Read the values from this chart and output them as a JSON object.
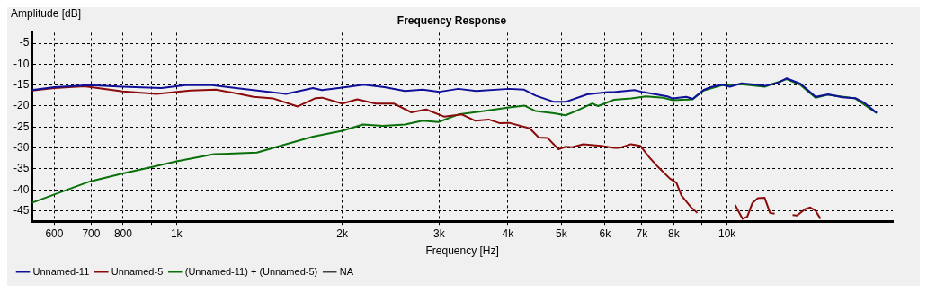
{
  "chart_data": {
    "type": "line",
    "title": "Frequency Response",
    "xlabel": "Frequency [Hz]",
    "ylabel": "Amplitude [dB]",
    "log": "x",
    "grid": true,
    "legend": "bottom left",
    "marker": "none",
    "line_style": "solid",
    "xlim": [
      546,
      20000
    ],
    "ylim": [
      -47.5,
      -2.5
    ],
    "xticks": [
      600,
      700,
      800,
      {
        "value": 900,
        "label": null
      },
      {
        "value": 1000,
        "label": "1k"
      },
      {
        "value": 2000,
        "label": "2k"
      },
      {
        "value": 3000,
        "label": "3k"
      },
      {
        "value": 4000,
        "label": "4k"
      },
      {
        "value": 5000,
        "label": "5k"
      },
      {
        "value": 6000,
        "label": "6k"
      },
      {
        "value": 7000,
        "label": "7k"
      },
      {
        "value": 8000,
        "label": "8k"
      },
      {
        "value": 9000,
        "label": null
      },
      {
        "value": 10000,
        "label": "10k"
      }
    ],
    "yticks": [
      -5,
      -10,
      -15,
      -20,
      -25,
      -30,
      -35,
      -40,
      -45
    ],
    "series": [
      {
        "name": "Unnamed-11",
        "color": "#10109a",
        "x": [
          546,
          600,
          696,
          799,
          939,
          1038,
          1161,
          1378,
          1582,
          1770,
          1837,
          2000,
          2189,
          2386,
          2600,
          2800,
          3005,
          3250,
          3500,
          4020,
          4280,
          4490,
          4850,
          5090,
          5570,
          6070,
          6230,
          6790,
          7050,
          7790,
          7970,
          8430,
          8660,
          9060,
          9330,
          9790,
          10120,
          10620,
          11300,
          11700,
          12400,
          12830,
          13600,
          14480,
          15260,
          16200,
          17100,
          17700,
          18700
        ],
        "values": [
          -16.2,
          -15.5,
          -15.0,
          -15.4,
          -15.7,
          -15.0,
          -15.0,
          -16.2,
          -17.1,
          -15.7,
          -16.2,
          -15.6,
          -14.9,
          -15.5,
          -16.4,
          -16.1,
          -16.6,
          -15.9,
          -16.4,
          -15.9,
          -16.1,
          -17.5,
          -19.0,
          -19.0,
          -17.2,
          -16.7,
          -16.7,
          -16.2,
          -16.7,
          -17.7,
          -18.2,
          -17.8,
          -18.3,
          -16.2,
          -15.5,
          -14.9,
          -15.4,
          -14.6,
          -14.9,
          -15.2,
          -14.4,
          -13.4,
          -14.7,
          -17.8,
          -17.2,
          -17.9,
          -18.1,
          -19.1,
          -21.6
        ]
      },
      {
        "name": "Unnamed-5",
        "color": "#8b0a0a",
        "x": [
          546,
          600,
          680,
          799,
          920,
          1060,
          1180,
          1300,
          1380,
          1500,
          1660,
          1790,
          1840,
          2000,
          2130,
          2300,
          2480,
          2670,
          2840,
          3060,
          3300,
          3490,
          3690,
          3870,
          4020,
          4380,
          4550,
          4720,
          4940,
          5090,
          5230,
          5480,
          5900,
          6230,
          6370,
          6690,
          6960,
          7230,
          7500,
          7870,
          8090,
          8260,
          8580,
          8830,
          9500,
          10340,
          10670,
          10880,
          11120,
          11370,
          11700,
          11970,
          12200,
          12600,
          13150,
          13400,
          13850,
          14160,
          14460,
          14780
        ],
        "values": [
          -16.3,
          -15.7,
          -15.3,
          -16.5,
          -17.1,
          -16.3,
          -16.1,
          -17.1,
          -17.8,
          -18.2,
          -20.1,
          -18.1,
          -18.0,
          -19.4,
          -18.4,
          -19.4,
          -19.4,
          -21.5,
          -20.8,
          -22.5,
          -22.0,
          -23.5,
          -23.2,
          -24.1,
          -24.0,
          -25.3,
          -27.5,
          -27.6,
          -30.3,
          -29.7,
          -29.8,
          -29.1,
          -29.5,
          -30.0,
          -30.0,
          -29.1,
          -29.5,
          -32.3,
          -34.6,
          -37.3,
          -38.3,
          -41.3,
          -44.0,
          -45.5,
          null,
          -43.6,
          -46.9,
          -46.4,
          -43.1,
          -42.0,
          -41.9,
          -45.5,
          -45.7,
          null,
          -46.0,
          -46.1,
          -44.6,
          -44.2,
          -44.9,
          -46.9
        ]
      },
      {
        "name": "(Unnamed-11) + (Unnamed-5)",
        "color": "#0a700a",
        "x": [
          546,
          600,
          696,
          799,
          900,
          1000,
          1170,
          1400,
          1580,
          1770,
          2000,
          2180,
          2370,
          2600,
          2800,
          2990,
          3250,
          3570,
          4020,
          4290,
          4490,
          4850,
          5090,
          5310,
          5690,
          5830,
          6230,
          6700,
          7120,
          7660,
          7970,
          8660,
          9060,
          9790,
          10620,
          11700,
          12830,
          13600,
          14480,
          15260,
          17100,
          18700
        ],
        "values": [
          -43.1,
          -41.1,
          -38.0,
          -36.1,
          -34.6,
          -33.2,
          -31.5,
          -31.1,
          -29.1,
          -27.3,
          -25.9,
          -24.4,
          -24.7,
          -24.4,
          -23.5,
          -23.8,
          -22.0,
          -21.3,
          -20.3,
          -19.9,
          -21.2,
          -21.7,
          -22.2,
          -21.2,
          -19.4,
          -20.0,
          -18.5,
          -18.2,
          -17.7,
          -18.0,
          -18.6,
          -18.4,
          -16.3,
          -15.0,
          -14.8,
          -15.4,
          -13.6,
          -15.0,
          -18.0,
          -17.3,
          -18.2,
          -21.7
        ]
      },
      {
        "name": "NA",
        "color": "#404040"
      }
    ]
  }
}
